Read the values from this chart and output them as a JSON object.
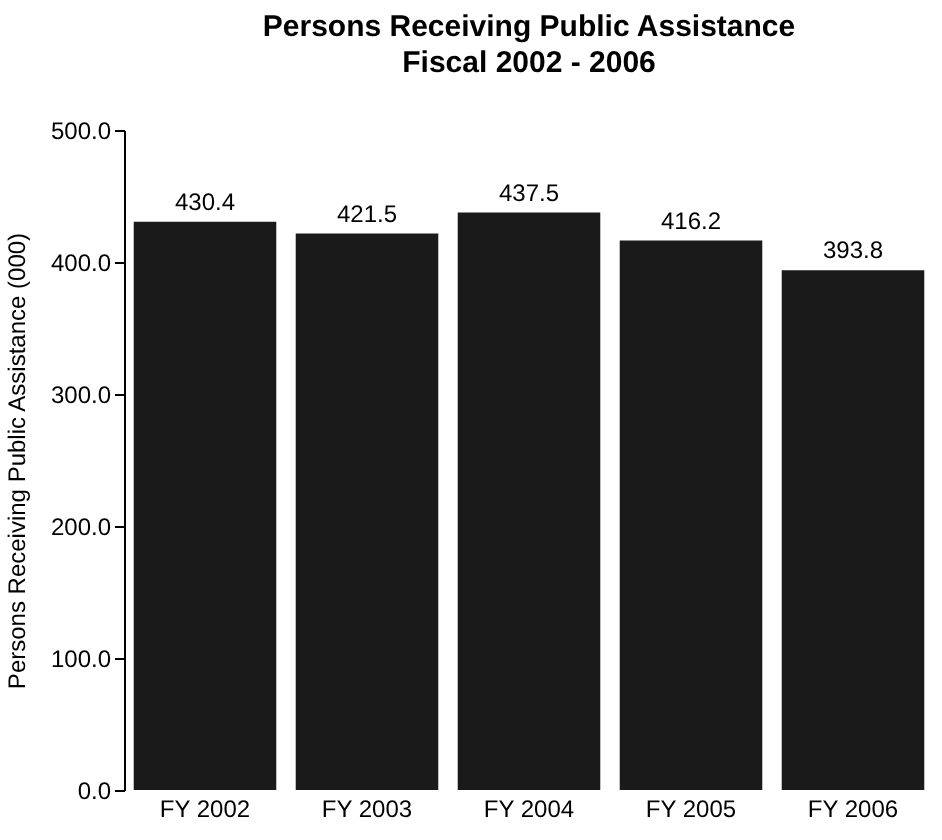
{
  "chart_data": {
    "type": "bar",
    "title": "Persons Receiving Public Assistance",
    "subtitle": "Fiscal 2002 - 2006",
    "ylabel": "Persons Receiving Public Assistance (000)",
    "categories": [
      "FY 2002",
      "FY 2003",
      "FY 2004",
      "FY 2005",
      "FY 2006"
    ],
    "values": [
      430.4,
      421.5,
      437.5,
      416.2,
      393.8
    ],
    "color": "#1a1a1a",
    "ylim": [
      0,
      500
    ],
    "yticks": [
      {
        "value": 0,
        "label": "0.0"
      },
      {
        "value": 100,
        "label": "100.0"
      },
      {
        "value": 200,
        "label": "200.0"
      },
      {
        "value": 300,
        "label": "300.0"
      },
      {
        "value": 400,
        "label": "400.0"
      },
      {
        "value": 500,
        "label": "500.0"
      }
    ],
    "data_labels": true,
    "grid": false
  }
}
